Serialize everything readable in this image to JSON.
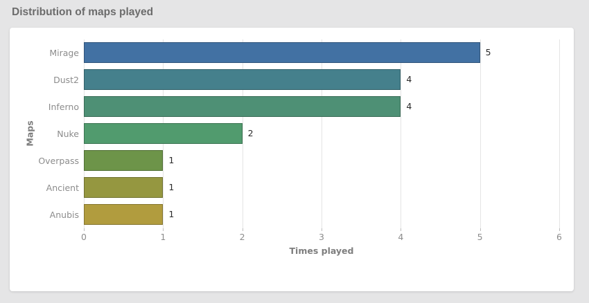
{
  "header": {
    "title": "Distribution of maps played"
  },
  "colors": {
    "page_background": "#e5e5e6",
    "card_background": "#ffffff",
    "title_text": "#6c6c6c",
    "gridline": "#e4e4e4",
    "tick_mark": "#bdbdbd",
    "tick_label_text": "#8c8c8c",
    "axis_label_text": "#7e7e7e",
    "value_label_text": "#2a2a2a"
  },
  "chart_data": {
    "type": "bar",
    "orientation": "horizontal",
    "categories": [
      "Mirage",
      "Dust2",
      "Inferno",
      "Nuke",
      "Overpass",
      "Ancient",
      "Anubis"
    ],
    "values": [
      5,
      4,
      4,
      2,
      1,
      1,
      1
    ],
    "value_labels": [
      "5",
      "4",
      "4",
      "2",
      "1",
      "1",
      "1"
    ],
    "bar_colors": [
      "#4271a3",
      "#45808c",
      "#4e9075",
      "#519b6e",
      "#6d9449",
      "#959740",
      "#b19c3e"
    ],
    "xlabel": "Times played",
    "ylabel": "Maps",
    "xticks": [
      0,
      1,
      2,
      3,
      4,
      5,
      6
    ],
    "xlim": [
      0,
      6
    ],
    "grid": "vertical-gridlines-on",
    "legend": "none"
  }
}
